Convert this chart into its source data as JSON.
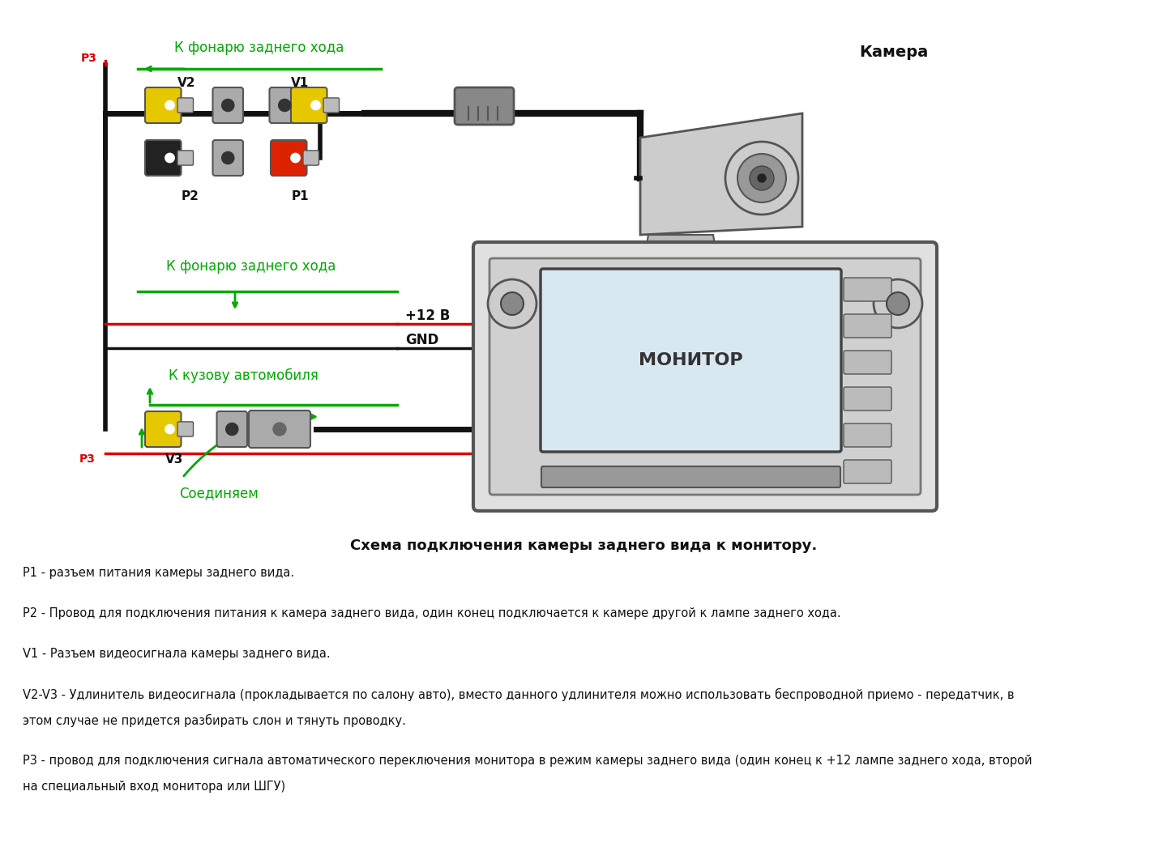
{
  "bg_color": "#ffffff",
  "title_text": "Схема подключения камеры заднего вида к монитору.",
  "title_fontsize": 13,
  "desc1": "P1 - разъем питания камеры заднего вида.",
  "desc2": "P2 - Провод для подключения питания к камера заднего вида, один конец подключается к камере другой к лампе заднего хода.",
  "desc3": "V1 - Разъем видеосигнала камеры заднего вида.",
  "desc4_line1": "V2-V3 - Удлинитель видеосигнала (прокладывается по салону авто), вместо данного удлинителя можно использовать беспроводной приемо - передатчик, в",
  "desc4_line2": "этом случае не придется разбирать слон и тянуть проводку.",
  "desc5_line1": "P3 - провод для подключения сигнала автоматического переключения монитора в режим камеры заднего вида (один конец к +12 лампе заднего хода, второй",
  "desc5_line2": "на специальный вход монитора или ШГУ)",
  "green_color": "#00aa00",
  "red_color": "#dd0000",
  "black_color": "#111111",
  "yellow_color": "#e6c800",
  "dark_gray": "#555555",
  "light_gray": "#cccccc",
  "mid_gray": "#999999"
}
